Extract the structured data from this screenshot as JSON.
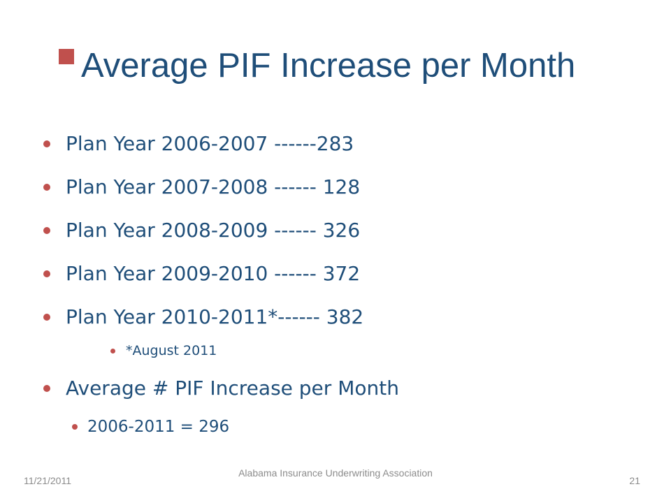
{
  "slide": {
    "title": "Average PIF Increase per Month",
    "bullets": [
      {
        "level": 1,
        "text": "Plan Year 2006-2007 ------283"
      },
      {
        "level": 1,
        "text": "Plan Year 2007-2008 ------ 128"
      },
      {
        "level": 1,
        "text": "Plan Year 2008-2009 ------ 326"
      },
      {
        "level": 1,
        "text": "Plan Year 2009-2010 ------ 372"
      },
      {
        "level": 1,
        "text": "Plan Year 2010-2011*------ 382"
      },
      {
        "level": 2,
        "text": "*August 2011"
      },
      {
        "level": 1,
        "text": "Average # PIF Increase per Month"
      },
      {
        "level": 2,
        "text": "2006-2011 = 296"
      }
    ],
    "colors": {
      "title": "#1f4e79",
      "body_text": "#1f4e79",
      "bullet": "#c0504d",
      "footer": "#8c8c8c"
    }
  },
  "footer": {
    "date": "11/21/2011",
    "organization": "Alabama Insurance Underwriting Association",
    "page_number": "21"
  }
}
